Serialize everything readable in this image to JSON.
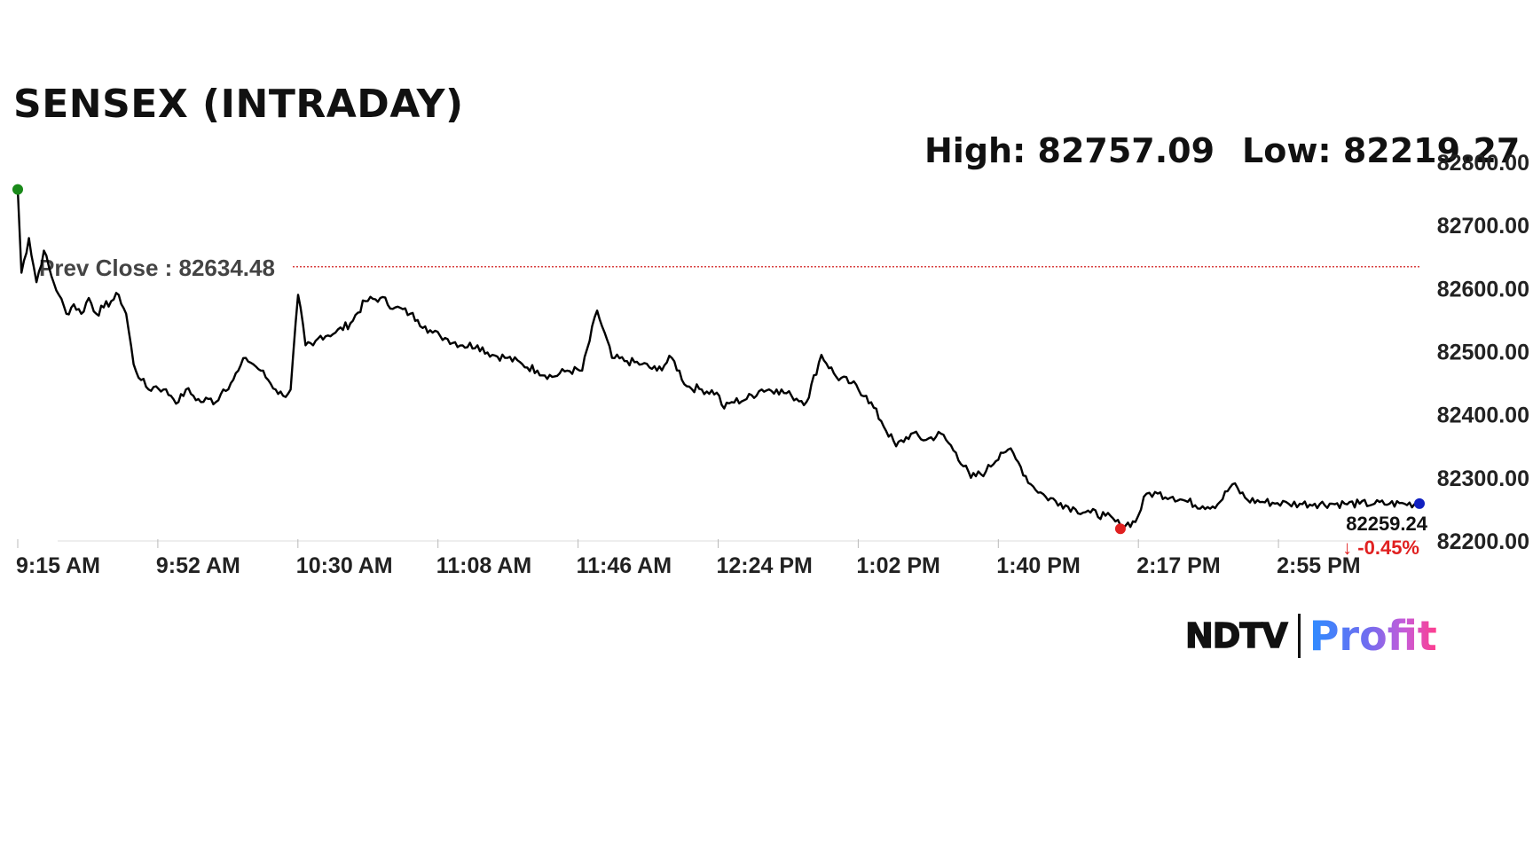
{
  "header": {
    "title": "SENSEX (INTRADAY)",
    "high_text": "High: 82757.09",
    "low_text": "Low: 82219.27"
  },
  "brand": {
    "logo_left": "NDTV",
    "logo_right": "Profit"
  },
  "colors": {
    "line": "#000000",
    "prev_close_line": "#cc0000",
    "start_marker": "#1a8a1a",
    "low_marker": "#e02020",
    "last_marker": "#1020c0",
    "negative_change": "#e02020"
  },
  "chart_data": {
    "type": "line",
    "title": "SENSEX (INTRADAY)",
    "xlabel": "",
    "ylabel": "",
    "x_ticks": [
      "9:15 AM",
      "9:52 AM",
      "10:30 AM",
      "11:08 AM",
      "11:46 AM",
      "12:24 PM",
      "1:02 PM",
      "1:40 PM",
      "2:17 PM",
      "2:55 PM"
    ],
    "y_ticks": [
      "82200.00",
      "82300.00",
      "82400.00",
      "82500.00",
      "82600.00",
      "82700.00",
      "82800.00"
    ],
    "ylim": [
      82200,
      82800
    ],
    "grid": false,
    "prev_close": 82634.48,
    "prev_close_label": "Prev Close : 82634.48",
    "high": 82757.09,
    "low": 82219.27,
    "last_value": 82259.24,
    "last_value_label": "82259.24",
    "change_pct_label": "-0.45%",
    "change_arrow": "↓",
    "series": [
      {
        "x": [
          "9:15",
          "9:16",
          "9:18",
          "9:20",
          "9:22",
          "9:24",
          "9:26",
          "9:28",
          "9:30",
          "9:32",
          "9:34",
          "9:36",
          "9:38",
          "9:40",
          "9:42",
          "9:44",
          "9:46",
          "9:48",
          "9:50",
          "9:52",
          "9:54",
          "9:56",
          "9:58",
          "10:00",
          "10:02",
          "10:04",
          "10:06",
          "10:08",
          "10:10",
          "10:12",
          "10:14",
          "10:16",
          "10:18",
          "10:20",
          "10:22",
          "10:24",
          "10:26",
          "10:28",
          "10:30",
          "10:32",
          "10:34",
          "10:36",
          "10:40",
          "10:44",
          "10:48",
          "10:52",
          "10:56",
          "11:00",
          "11:02",
          "11:04",
          "11:06",
          "11:08",
          "11:10",
          "11:14",
          "11:18",
          "11:22",
          "11:26",
          "11:30",
          "11:34",
          "11:38",
          "11:42",
          "11:46",
          "11:50",
          "11:54",
          "11:58",
          "12:02",
          "12:06",
          "12:10",
          "12:14",
          "12:18",
          "12:22",
          "12:24",
          "12:26",
          "12:30",
          "12:34",
          "12:38",
          "12:42",
          "12:46",
          "12:50",
          "12:54",
          "12:58",
          "13:02",
          "13:06",
          "13:10",
          "13:14",
          "13:18",
          "13:22",
          "13:26",
          "13:30",
          "13:34",
          "13:38",
          "13:40",
          "13:42",
          "13:46",
          "13:50",
          "13:54",
          "13:58",
          "14:02",
          "14:06",
          "14:10",
          "14:14",
          "14:17",
          "14:20",
          "14:24",
          "14:28",
          "14:32",
          "14:36",
          "14:40",
          "14:44",
          "14:48",
          "14:52",
          "14:55",
          "14:58",
          "15:02",
          "15:06",
          "15:10",
          "15:14",
          "15:18",
          "15:22",
          "15:26",
          "15:30"
        ],
        "y": [
          82757,
          82625,
          82680,
          82610,
          82660,
          82620,
          82590,
          82560,
          82575,
          82560,
          82585,
          82560,
          82570,
          82580,
          82590,
          82560,
          82480,
          82455,
          82440,
          82445,
          82440,
          82430,
          82420,
          82440,
          82430,
          82420,
          82425,
          82420,
          82440,
          82450,
          82470,
          82490,
          82480,
          82470,
          82455,
          82440,
          82430,
          82440,
          82590,
          82510,
          82510,
          82525,
          82530,
          82545,
          82580,
          82585,
          82570,
          82560,
          82550,
          82540,
          82530,
          82525,
          82520,
          82510,
          82510,
          82495,
          82490,
          82480,
          82470,
          82460,
          82470,
          82470,
          82565,
          82490,
          82485,
          82480,
          82470,
          82490,
          82445,
          82440,
          82435,
          82410,
          82420,
          82425,
          82440,
          82440,
          82430,
          82420,
          82495,
          82460,
          82450,
          82430,
          82390,
          82350,
          82370,
          82360,
          82370,
          82340,
          82300,
          82310,
          82340,
          82345,
          82330,
          82290,
          82270,
          82260,
          82250,
          82245,
          82240,
          82225,
          82230,
          82275,
          82275,
          82270,
          82262,
          82255,
          82258,
          82290,
          82265,
          82262,
          82260,
          82259,
          82259,
          82259,
          82259,
          82259,
          82259,
          82259,
          82259,
          82259,
          82259
        ]
      }
    ]
  }
}
